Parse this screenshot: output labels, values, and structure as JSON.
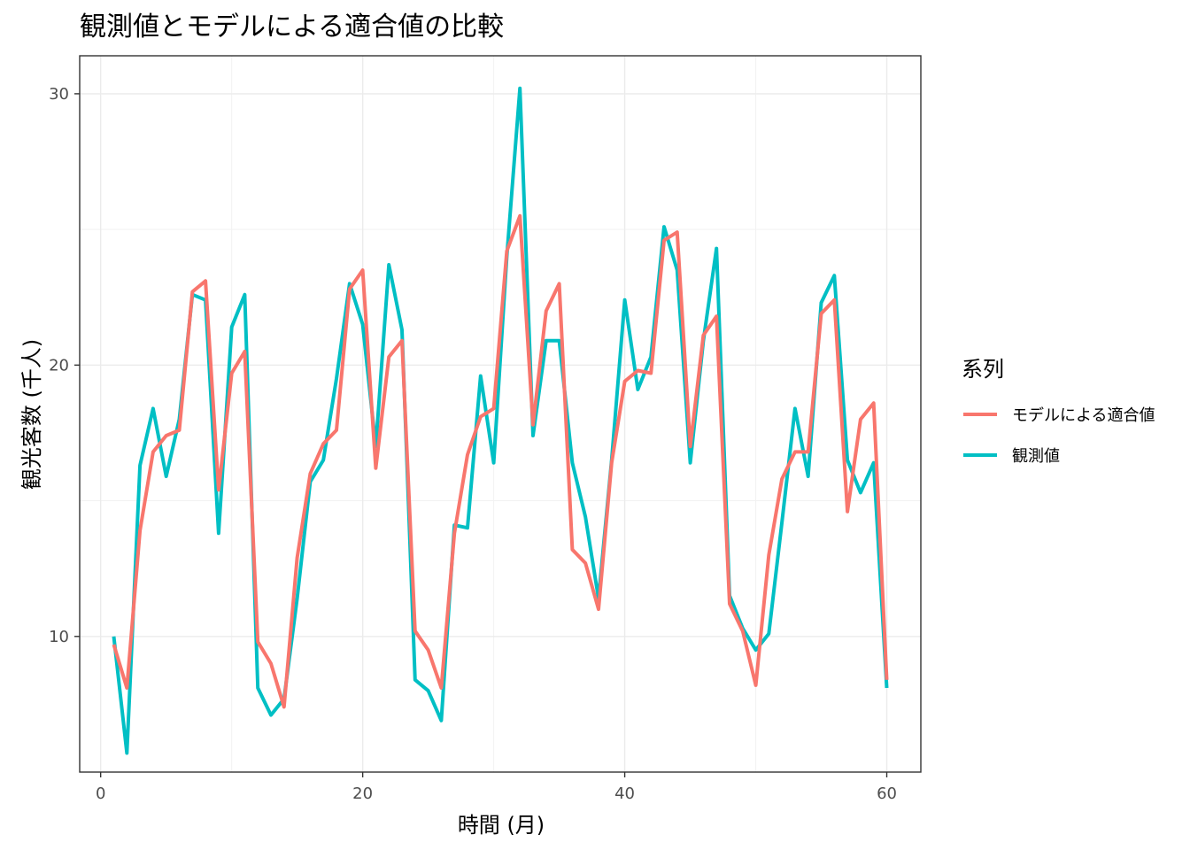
{
  "chart_data": {
    "type": "line",
    "title": "観測値とモデルによる適合値の比較",
    "xlabel": "時間 (月)",
    "ylabel": "観光客数 (千人)",
    "xlim": [
      -1.6,
      62.6
    ],
    "ylim": [
      5.0,
      31.4
    ],
    "xticks": [
      0,
      20,
      40,
      60
    ],
    "yticks": [
      10,
      20,
      30
    ],
    "grid": true,
    "legend": {
      "title": "系列",
      "placement": "right",
      "entries": [
        {
          "name": "モデルによる適合値",
          "color": "#F8766D"
        },
        {
          "name": "観測値",
          "color": "#00BFC4"
        }
      ]
    },
    "x": [
      1,
      2,
      3,
      4,
      5,
      6,
      7,
      8,
      9,
      10,
      11,
      12,
      13,
      14,
      15,
      16,
      17,
      18,
      19,
      20,
      21,
      22,
      23,
      24,
      25,
      26,
      27,
      28,
      29,
      30,
      31,
      32,
      33,
      34,
      35,
      36,
      37,
      38,
      39,
      40,
      41,
      42,
      43,
      44,
      45,
      46,
      47,
      48,
      49,
      50,
      51,
      52,
      53,
      54,
      55,
      56,
      57,
      58,
      59,
      60
    ],
    "series": [
      {
        "name": "観測値",
        "color": "#00BFC4",
        "values": [
          10.0,
          5.7,
          16.3,
          18.4,
          15.9,
          18.0,
          22.6,
          22.4,
          13.8,
          21.4,
          22.6,
          8.1,
          7.1,
          7.7,
          11.4,
          15.7,
          16.5,
          19.5,
          23.0,
          21.5,
          17.0,
          23.7,
          21.3,
          8.4,
          8.0,
          6.9,
          14.1,
          14.0,
          19.6,
          16.4,
          24.0,
          30.2,
          17.4,
          20.9,
          20.9,
          16.4,
          14.4,
          11.4,
          16.5,
          22.4,
          19.1,
          20.3,
          25.1,
          23.5,
          16.4,
          20.9,
          24.3,
          11.5,
          10.3,
          9.5,
          10.1,
          14.2,
          18.4,
          15.9,
          22.3,
          23.3,
          16.5,
          15.3,
          16.4,
          8.1
        ]
      },
      {
        "name": "モデルによる適合値",
        "color": "#F8766D",
        "values": [
          9.7,
          8.1,
          13.9,
          16.8,
          17.4,
          17.6,
          22.7,
          23.1,
          15.4,
          19.7,
          20.5,
          9.8,
          9.0,
          7.4,
          12.9,
          16.0,
          17.1,
          17.6,
          22.8,
          23.5,
          16.2,
          20.3,
          20.9,
          10.2,
          9.5,
          8.1,
          13.8,
          16.7,
          18.1,
          18.4,
          24.2,
          25.5,
          17.8,
          22.0,
          23.0,
          13.2,
          12.7,
          11.0,
          16.4,
          19.4,
          19.8,
          19.7,
          24.6,
          24.9,
          17.0,
          21.1,
          21.8,
          11.2,
          10.2,
          8.2,
          13.0,
          15.8,
          16.8,
          16.8,
          21.9,
          22.4,
          14.6,
          18.0,
          18.6,
          8.4
        ]
      }
    ]
  }
}
